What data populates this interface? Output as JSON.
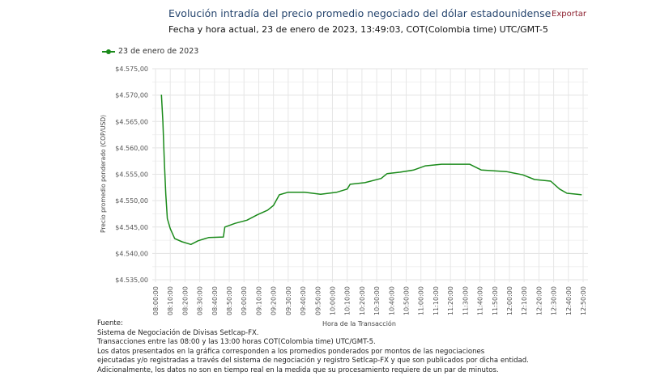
{
  "header": {
    "title": "Evolución intradía del precio promedio negociado del dólar estadounidense",
    "subtitle": "Fecha y hora actual, 23 de enero de 2023, 13:49:03, COT(Colombia time) UTC/GMT-5",
    "export_label": "Exportar"
  },
  "chart_data": {
    "type": "line",
    "title": "Evolución intradía del precio promedio negociado del dólar estadounidense",
    "xlabel": "Hora de la Transacción",
    "ylabel": "Precio promedio ponderado (COP/USD)",
    "ylim": [
      4535,
      4575
    ],
    "yticks": [
      "$4.535,00",
      "$4.540,00",
      "$4.545,00",
      "$4.550,00",
      "$4.555,00",
      "$4.560,00",
      "$4.565,00",
      "$4.570,00",
      "$4.575,00"
    ],
    "xticks": [
      "08:00:00",
      "08:10:00",
      "08:20:00",
      "08:30:00",
      "08:40:00",
      "08:50:00",
      "09:00:00",
      "09:10:00",
      "09:20:00",
      "09:30:00",
      "09:40:00",
      "09:50:00",
      "10:00:00",
      "10:10:00",
      "10:20:00",
      "10:30:00",
      "10:40:00",
      "10:50:00",
      "11:00:00",
      "11:10:00",
      "11:20:00",
      "11:30:00",
      "11:40:00",
      "11:50:00",
      "12:00:00",
      "12:10:00",
      "12:20:00",
      "12:30:00",
      "12:40:00",
      "12:50:00"
    ],
    "grid": true,
    "legend": "top-left",
    "color": "#1a8a1a",
    "series": [
      {
        "name": "23 de enero de 2023",
        "points": [
          [
            "08:04",
            4570.1
          ],
          [
            "08:05",
            4565.0
          ],
          [
            "08:06",
            4557.4
          ],
          [
            "08:07",
            4551.2
          ],
          [
            "08:08",
            4546.6
          ],
          [
            "08:10",
            4544.7
          ],
          [
            "08:13",
            4542.8
          ],
          [
            "08:18",
            4542.2
          ],
          [
            "08:24",
            4541.7
          ],
          [
            "08:29",
            4542.4
          ],
          [
            "08:36",
            4543.0
          ],
          [
            "08:46",
            4543.1
          ],
          [
            "08:47",
            4545.0
          ],
          [
            "08:54",
            4545.7
          ],
          [
            "09:02",
            4546.3
          ],
          [
            "09:09",
            4547.3
          ],
          [
            "09:16",
            4548.2
          ],
          [
            "09:20",
            4549.1
          ],
          [
            "09:24",
            4551.1
          ],
          [
            "09:30",
            4551.6
          ],
          [
            "09:41",
            4551.6
          ],
          [
            "09:52",
            4551.2
          ],
          [
            "10:03",
            4551.6
          ],
          [
            "10:10",
            4552.2
          ],
          [
            "10:12",
            4553.1
          ],
          [
            "10:22",
            4553.4
          ],
          [
            "10:33",
            4554.2
          ],
          [
            "10:37",
            4555.1
          ],
          [
            "10:46",
            4555.4
          ],
          [
            "10:55",
            4555.8
          ],
          [
            "11:03",
            4556.6
          ],
          [
            "11:14",
            4556.9
          ],
          [
            "11:33",
            4556.9
          ],
          [
            "11:41",
            4555.8
          ],
          [
            "11:58",
            4555.5
          ],
          [
            "12:09",
            4554.9
          ],
          [
            "12:17",
            4554.0
          ],
          [
            "12:28",
            4553.7
          ],
          [
            "12:34",
            4552.2
          ],
          [
            "12:39",
            4551.4
          ],
          [
            "12:46",
            4551.2
          ],
          [
            "12:49",
            4551.1
          ]
        ]
      }
    ]
  },
  "footer": {
    "heading": "Fuente:",
    "lines": [
      "Sistema de Negociación de Divisas Setlcap-FX.",
      "Transacciones entre las 08:00 y las 13:00 horas COT(Colombia time) UTC/GMT-5.",
      "Los datos presentados en la gráfica corresponden a los promedios ponderados por montos de las negociaciones",
      "ejecutadas y/o registradas a través del sistema de negociación y registro Setlcap-FX y que son publicados por dicha entidad.",
      "Adicionalmente, los datos no son en tiempo real en la medida que su procesamiento requiere de un par de minutos."
    ]
  }
}
